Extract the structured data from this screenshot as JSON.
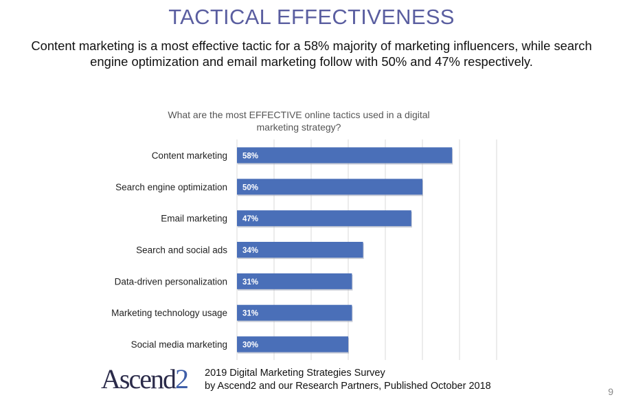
{
  "slide": {
    "headline": "TACTICAL EFFECTIVENESS",
    "subhead": "Content marketing is a most effective tactic for a 58% majority of marketing influencers, while search engine optimization and email marketing follow with 50% and 47% respectively.",
    "page_number": "9"
  },
  "chart_data": {
    "type": "bar",
    "orientation": "horizontal",
    "title_line1": "What are the most EFFECTIVE online tactics used in a digital",
    "title_line2": "marketing strategy?",
    "categories": [
      "Content marketing",
      "Search engine optimization",
      "Email marketing",
      "Search and social ads",
      "Data-driven personalization",
      "Marketing technology usage",
      "Social media marketing"
    ],
    "values": [
      58,
      50,
      47,
      34,
      31,
      31,
      30
    ],
    "data_labels": [
      "58%",
      "50%",
      "47%",
      "34%",
      "31%",
      "31%",
      "30%"
    ],
    "xlim": [
      0,
      70
    ],
    "grid": true,
    "bar_color": "#4a6fb8"
  },
  "footer": {
    "logo_main": "Ascend",
    "logo_suffix": "2",
    "line1": "2019 Digital Marketing Strategies Survey",
    "line2": "by Ascend2 and our Research Partners, Published October 2018"
  }
}
